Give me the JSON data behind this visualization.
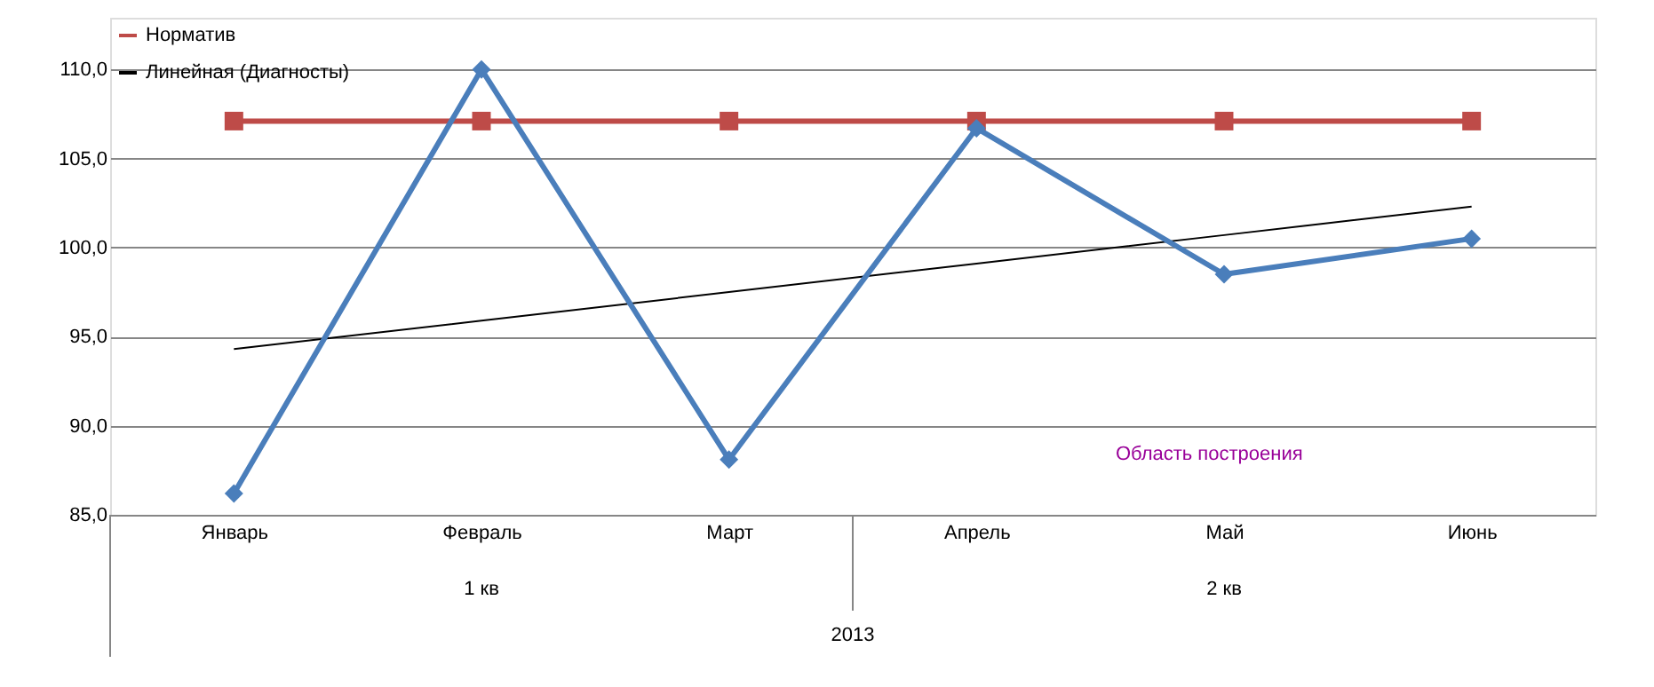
{
  "chart_data": {
    "type": "line",
    "categories": [
      "Январь",
      "Февраль",
      "Март",
      "Апрель",
      "Май",
      "Июнь"
    ],
    "series": [
      {
        "color": "#4a7ebb",
        "marker": "diamond",
        "values": [
          86.2,
          110.0,
          88.1,
          106.7,
          98.5,
          100.5
        ]
      },
      {
        "name": "Норматив",
        "color": "#be4b48",
        "marker": "square",
        "values": [
          107.1,
          107.1,
          107.1,
          107.1,
          107.1,
          107.1
        ]
      },
      {
        "name": "Линейная (Диагносты)",
        "color": "#000000",
        "marker": "none",
        "values": [
          94.3,
          95.9,
          97.5,
          99.1,
          100.7,
          102.3
        ]
      }
    ],
    "ylim": [
      85,
      112.9
    ],
    "yticks": [
      {
        "value": 85,
        "label": "85,0"
      },
      {
        "value": 90,
        "label": "90,0"
      },
      {
        "value": 95,
        "label": "95,0"
      },
      {
        "value": 100,
        "label": "100,0"
      },
      {
        "value": 105,
        "label": "105,0"
      },
      {
        "value": 110,
        "label": "110,0"
      }
    ],
    "grid": "y",
    "legend": "top left",
    "line_style": "solid",
    "annotations": [
      "1 кв",
      "2 кв",
      "2013",
      "Область построения"
    ]
  }
}
